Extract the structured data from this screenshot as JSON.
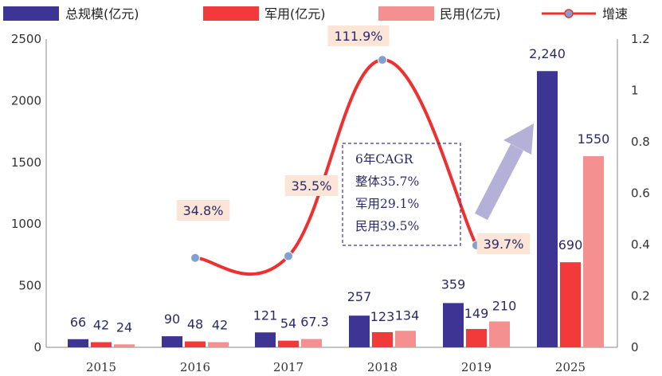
{
  "chart_data": {
    "type": "bar",
    "categories": [
      "2015",
      "2016",
      "2017",
      "2018",
      "2019",
      "2025"
    ],
    "series": [
      {
        "name": "总规模(亿元)",
        "color": "#3d3494",
        "values": [
          66,
          90,
          121,
          257,
          359,
          2240
        ],
        "labels": [
          "66",
          "90",
          "121",
          "257",
          "359",
          "2,240"
        ]
      },
      {
        "name": "军用(亿元)",
        "color": "#f23a3a",
        "values": [
          42,
          48,
          54,
          123,
          149,
          690
        ],
        "labels": [
          "42",
          "48",
          "54",
          "123",
          "149",
          "690"
        ]
      },
      {
        "name": "民用(亿元)",
        "color": "#f59090",
        "values": [
          24,
          42,
          67.3,
          134,
          210,
          1550
        ],
        "labels": [
          "24",
          "42",
          "67.3",
          "134",
          "210",
          "1550"
        ]
      }
    ],
    "line": {
      "name": "增速",
      "color": "#ee3030",
      "marker_color": "#7fa0d0",
      "x": [
        "2016",
        "2017",
        "2018",
        "2019"
      ],
      "values": [
        0.348,
        0.355,
        1.119,
        0.397
      ],
      "labels": [
        "34.8%",
        "35.5%",
        "111.9%",
        "39.7%"
      ],
      "label_bg": "#fbe5d6"
    },
    "y_left": {
      "range": [
        0,
        2500
      ],
      "ticks": [
        "0",
        "500",
        "1000",
        "1500",
        "2000",
        "2500"
      ]
    },
    "y_right": {
      "range": [
        0,
        1.2
      ],
      "ticks": [
        "0",
        "0.2",
        "0.4",
        "0.6",
        "0.8",
        "1",
        "1.2"
      ]
    },
    "legend": "top",
    "grid": false,
    "annotation": {
      "lines": [
        "6年CAGR",
        "整体35.7%",
        "军用29.1%",
        "民用39.5%"
      ],
      "border_color": "#3d3494"
    },
    "arrow_color": "#b4b0d8"
  }
}
